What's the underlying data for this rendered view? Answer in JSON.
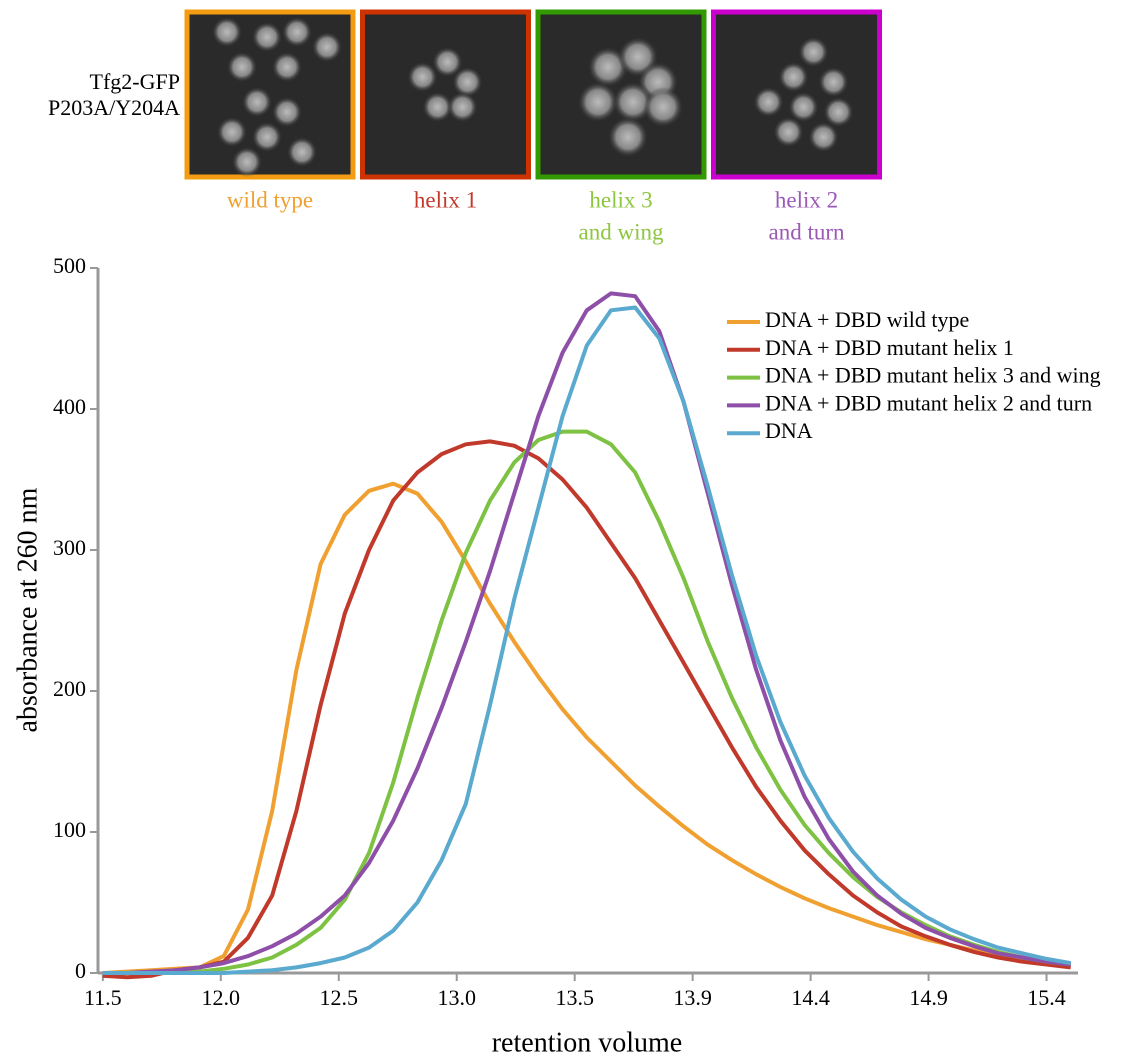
{
  "figure": {
    "row_label": [
      "Tfg2-GFP",
      "P203A/Y204A"
    ],
    "panels": [
      {
        "label": [
          "wild type"
        ],
        "frame_color": "#f39c12",
        "label_color": "#f0a030"
      },
      {
        "label": [
          "helix 1"
        ],
        "frame_color": "#cc3300",
        "label_color": "#c0392b"
      },
      {
        "label": [
          "helix 3",
          "and wing"
        ],
        "frame_color": "#339900",
        "label_color": "#8dc63f"
      },
      {
        "label": [
          "helix 2",
          "and turn"
        ],
        "frame_color": "#cc00cc",
        "label_color": "#9b59b6"
      }
    ]
  },
  "chart_data": {
    "type": "line",
    "x_label": "retention volume",
    "y_label": "absorbance at 260 nm",
    "x": [
      11.5,
      11.6,
      11.7,
      11.8,
      11.9,
      12.0,
      12.1,
      12.2,
      12.3,
      12.4,
      12.5,
      12.6,
      12.7,
      12.8,
      12.9,
      13.0,
      13.1,
      13.2,
      13.3,
      13.4,
      13.5,
      13.6,
      13.7,
      13.8,
      13.9,
      14.0,
      14.1,
      14.2,
      14.3,
      14.4,
      14.5,
      14.6,
      14.7,
      14.8,
      14.9,
      15.0,
      15.1,
      15.2,
      15.3,
      15.4,
      15.5
    ],
    "xlim": [
      11.48,
      15.53
    ],
    "xticks": [
      {
        "value": 11.5,
        "label": "11.5"
      },
      {
        "value": 11.9875,
        "label": "12.0"
      },
      {
        "value": 12.475,
        "label": "12.5"
      },
      {
        "value": 12.9625,
        "label": "13.0"
      },
      {
        "value": 13.45,
        "label": "13.5"
      },
      {
        "value": 13.9375,
        "label": "13.9"
      },
      {
        "value": 14.425,
        "label": "14.4"
      },
      {
        "value": 14.9125,
        "label": "14.9"
      },
      {
        "value": 15.4,
        "label": "15.4"
      }
    ],
    "ylim": [
      0,
      500
    ],
    "yticks": [
      0,
      100,
      200,
      300,
      400,
      500
    ],
    "grid": false,
    "legend": "upper right",
    "series": [
      {
        "name": "DNA + DBD wild type",
        "color": "#f0a030",
        "values": [
          0,
          1,
          2,
          3,
          4,
          12,
          45,
          115,
          215,
          290,
          325,
          342,
          347,
          340,
          320,
          292,
          262,
          235,
          210,
          187,
          167,
          150,
          133,
          118,
          104,
          91,
          80,
          70,
          61,
          53,
          46,
          40,
          34,
          29,
          24,
          20,
          16,
          13,
          10,
          8,
          6
        ]
      },
      {
        "name": "DNA + DBD mutant helix 1",
        "color": "#c0392b",
        "values": [
          -2,
          -3,
          -2,
          2,
          4,
          8,
          25,
          55,
          115,
          190,
          255,
          300,
          335,
          355,
          368,
          375,
          377,
          374,
          365,
          350,
          330,
          305,
          280,
          250,
          220,
          190,
          160,
          132,
          108,
          87,
          70,
          55,
          43,
          33,
          26,
          20,
          15,
          11,
          8,
          6,
          4
        ]
      },
      {
        "name": "DNA + DBD mutant helix 3 and wing",
        "color": "#7dc242",
        "values": [
          0,
          0,
          0,
          1,
          1,
          3,
          6,
          11,
          20,
          32,
          52,
          85,
          135,
          195,
          250,
          298,
          335,
          362,
          378,
          384,
          384,
          375,
          355,
          320,
          280,
          235,
          195,
          160,
          130,
          105,
          85,
          68,
          54,
          43,
          34,
          26,
          20,
          15,
          11,
          8,
          6
        ]
      },
      {
        "name": "DNA + DBD mutant helix 2 and turn",
        "color": "#8e4fa8",
        "values": [
          0,
          0,
          1,
          2,
          4,
          7,
          12,
          19,
          28,
          40,
          55,
          78,
          108,
          145,
          188,
          235,
          285,
          340,
          395,
          440,
          470,
          482,
          480,
          455,
          405,
          340,
          275,
          215,
          165,
          125,
          95,
          72,
          55,
          42,
          32,
          25,
          19,
          14,
          11,
          8,
          6
        ]
      },
      {
        "name": "DNA",
        "color": "#5aa9cf",
        "values": [
          0,
          0,
          0,
          0,
          0,
          0,
          1,
          2,
          4,
          7,
          11,
          18,
          30,
          50,
          80,
          120,
          190,
          265,
          330,
          395,
          445,
          470,
          472,
          450,
          405,
          345,
          282,
          225,
          178,
          140,
          110,
          86,
          67,
          52,
          40,
          31,
          24,
          18,
          14,
          10,
          7
        ]
      }
    ]
  }
}
